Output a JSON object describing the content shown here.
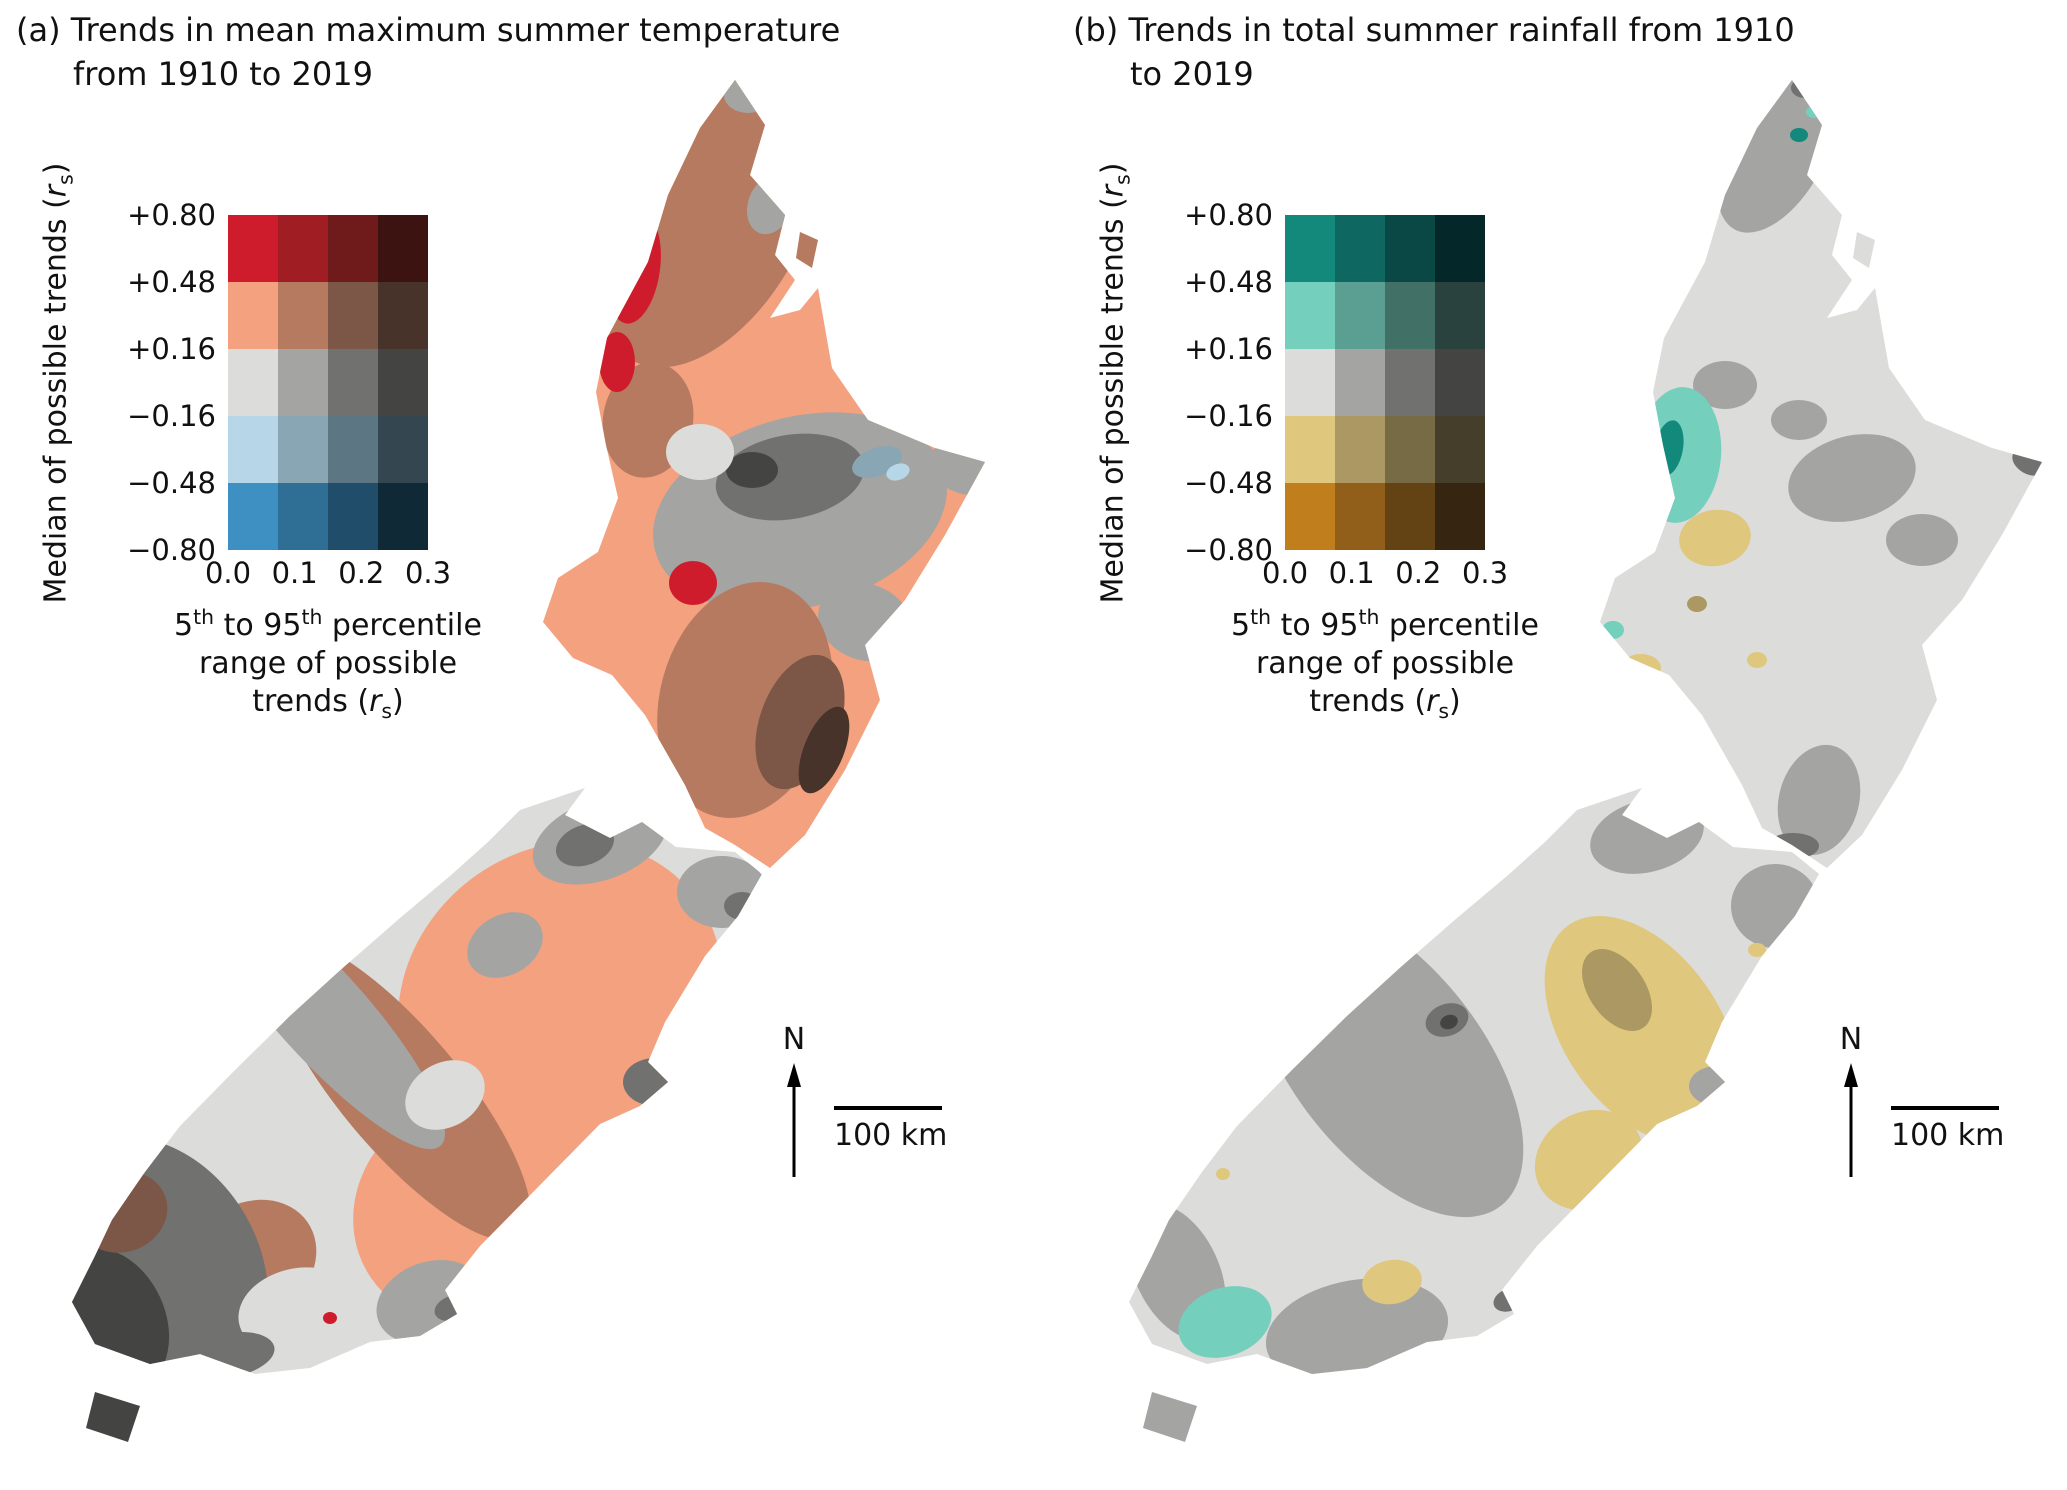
{
  "panels": [
    {
      "id": "a",
      "title_line1": "(a) Trends in mean maximum summer temperature",
      "title_line2": "from 1910 to 2019",
      "north_label": "N",
      "scale_label": "100 km",
      "legend": {
        "y_ticks": [
          "+0.80",
          "+0.48",
          "+0.16",
          "−0.16",
          "−0.48",
          "−0.80"
        ],
        "x_ticks": [
          "0.0",
          "0.1",
          "0.2",
          "0.3"
        ],
        "colors": [
          [
            "#cf1c2c",
            "#a11d24",
            "#6f1a1b",
            "#3d1312"
          ],
          [
            "#f3a17f",
            "#b57a60",
            "#7c5647",
            "#48332b"
          ],
          [
            "#dcdcda",
            "#a4a4a2",
            "#717170",
            "#444442"
          ],
          [
            "#b7d7e8",
            "#89a6b5",
            "#5d7683",
            "#344750"
          ],
          [
            "#3f90c2",
            "#2f6f96",
            "#204e6a",
            "#0f2937"
          ]
        ]
      }
    },
    {
      "id": "b",
      "title_line1": "(b) Trends in total summer rainfall from 1910",
      "title_line2": "to 2019",
      "north_label": "N",
      "scale_label": "100 km",
      "legend": {
        "y_ticks": [
          "+0.80",
          "+0.48",
          "+0.16",
          "−0.16",
          "−0.48",
          "−0.80"
        ],
        "x_ticks": [
          "0.0",
          "0.1",
          "0.2",
          "0.3"
        ],
        "colors": [
          [
            "#13897c",
            "#0e6861",
            "#094845",
            "#04282a"
          ],
          [
            "#74cfbd",
            "#5b9e92",
            "#417067",
            "#29423d"
          ],
          [
            "#dcdcda",
            "#a4a4a2",
            "#717170",
            "#444442"
          ],
          [
            "#dfc77d",
            "#ab9862",
            "#776b46",
            "#453e2b"
          ],
          [
            "#c07e1d",
            "#915f1a",
            "#634214",
            "#362511"
          ]
        ]
      }
    }
  ],
  "legend_labels": {
    "y_label_pre": "Median of possible trends (",
    "variable": "r",
    "variable_sub": "s",
    "y_label_post": ")",
    "x_label_1a": "5",
    "x_label_1a_sup": "th",
    "x_label_1b": " to 95",
    "x_label_1b_sup": "th",
    "x_label_1c": " percentile",
    "x_label_2": "range of possible",
    "x_label_3_pre": "trends ("
  }
}
